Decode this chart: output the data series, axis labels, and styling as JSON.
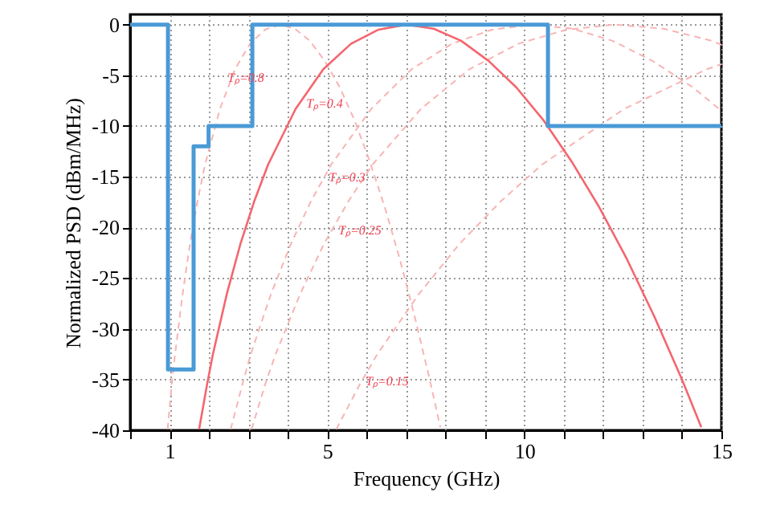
{
  "chart_data": {
    "type": "line",
    "xlabel": "Frequency (GHz)",
    "ylabel": "Normalized PSD (dBm/MHz)",
    "xlim": [
      0,
      15
    ],
    "ylim": [
      -40,
      1
    ],
    "xticks": [
      {
        "value": 0,
        "label": null
      },
      1,
      {
        "value": 2,
        "label": null
      },
      {
        "value": 3,
        "label": null
      },
      {
        "value": 4,
        "label": null
      },
      5,
      {
        "value": 6,
        "label": null
      },
      {
        "value": 7,
        "label": null
      },
      {
        "value": 8,
        "label": null
      },
      {
        "value": 9,
        "label": null
      },
      10,
      {
        "value": 11,
        "label": null
      },
      {
        "value": 12,
        "label": null
      },
      {
        "value": 13,
        "label": null
      },
      {
        "value": 14,
        "label": null
      },
      15
    ],
    "yticks": [
      0,
      -5,
      -10,
      -15,
      -20,
      -25,
      -30,
      -35,
      -40
    ],
    "grid": true,
    "marker": "none",
    "series": [
      {
        "line_style": "dashed",
        "color": "#f8b4b4",
        "x": [
          0.95,
          1.06,
          1.14,
          1.33,
          1.52,
          1.71,
          1.9,
          2.28,
          2.66,
          3.04,
          3.42,
          3.8,
          4.18,
          4.56,
          4.94,
          5.32,
          5.7,
          6.08,
          6.46,
          6.84,
          7.22,
          7.6,
          7.87
        ],
        "values": [
          -39.9,
          -35.3,
          -32.5,
          -26.6,
          -21.6,
          -17.4,
          -13.8,
          -8.3,
          -4.4,
          -1.9,
          -0.5,
          0,
          -0.4,
          -1.6,
          -3.6,
          -6.2,
          -9.5,
          -13.5,
          -18.0,
          -23.1,
          -28.8,
          -35.0,
          -39.7
        ]
      },
      {
        "line_style": "dashed",
        "color": "#f8b4b4",
        "x": [
          2.55,
          2.86,
          3.06,
          3.57,
          4.08,
          4.59,
          5.1,
          6.12,
          7.14,
          8.16,
          9.18,
          10.2,
          11.22,
          12.24,
          13.26,
          14.28,
          15
        ],
        "values": [
          -39.9,
          -35.3,
          -32.5,
          -26.6,
          -21.6,
          -17.4,
          -13.8,
          -8.3,
          -4.4,
          -1.9,
          -0.5,
          0,
          -0.4,
          -1.6,
          -3.6,
          -6.2,
          -8.5
        ]
      },
      {
        "line_style": "dashed",
        "color": "#f8b4b4",
        "x": [
          3.08,
          3.44,
          3.69,
          4.31,
          4.92,
          5.54,
          6.15,
          7.38,
          8.61,
          9.84,
          11.07,
          12.3,
          13.53,
          14.76,
          15
        ],
        "values": [
          -39.9,
          -35.3,
          -32.5,
          -26.6,
          -21.6,
          -17.4,
          -13.8,
          -8.3,
          -4.4,
          -1.9,
          -0.5,
          0,
          -0.4,
          -1.6,
          -2.0
        ]
      },
      {
        "line_style": "dashed",
        "color": "#f8b4b4",
        "x": [
          5.23,
          5.85,
          6.27,
          7.32,
          8.36,
          9.41,
          10.45,
          12.54,
          14.63,
          15
        ],
        "values": [
          -39.9,
          -35.3,
          -32.5,
          -26.6,
          -21.6,
          -17.4,
          -13.8,
          -8.3,
          -4.4,
          -3.9
        ]
      },
      {
        "line_style": "solid",
        "color": "#f4666e",
        "x": [
          1.75,
          1.96,
          2.1,
          2.45,
          2.8,
          3.15,
          3.5,
          4.2,
          4.9,
          5.6,
          6.3,
          7,
          7.7,
          8.4,
          9.1,
          9.8,
          10.5,
          11.2,
          11.9,
          12.6,
          13.3,
          14,
          14.49
        ],
        "values": [
          -39.9,
          -35.3,
          -32.5,
          -26.6,
          -21.6,
          -17.4,
          -13.8,
          -8.3,
          -4.4,
          -1.9,
          -0.5,
          0,
          -0.4,
          -1.6,
          -3.6,
          -6.2,
          -9.5,
          -13.5,
          -18.0,
          -23.1,
          -28.8,
          -35.0,
          -39.7
        ]
      },
      {
        "type": "step",
        "line_style": "solid",
        "color": "#4a9ad6",
        "x": [
          0,
          0.96,
          1.61,
          1.99,
          3.1,
          10.6,
          15
        ],
        "values": [
          0,
          -34,
          -12,
          -10,
          0,
          -10,
          -10
        ]
      }
    ],
    "annotations": [
      "Tₚ=0.8",
      "Tₚ=0.4",
      "Tₚ=0.3",
      "Tₚ=0.25",
      "Tₚ=0.15"
    ]
  }
}
